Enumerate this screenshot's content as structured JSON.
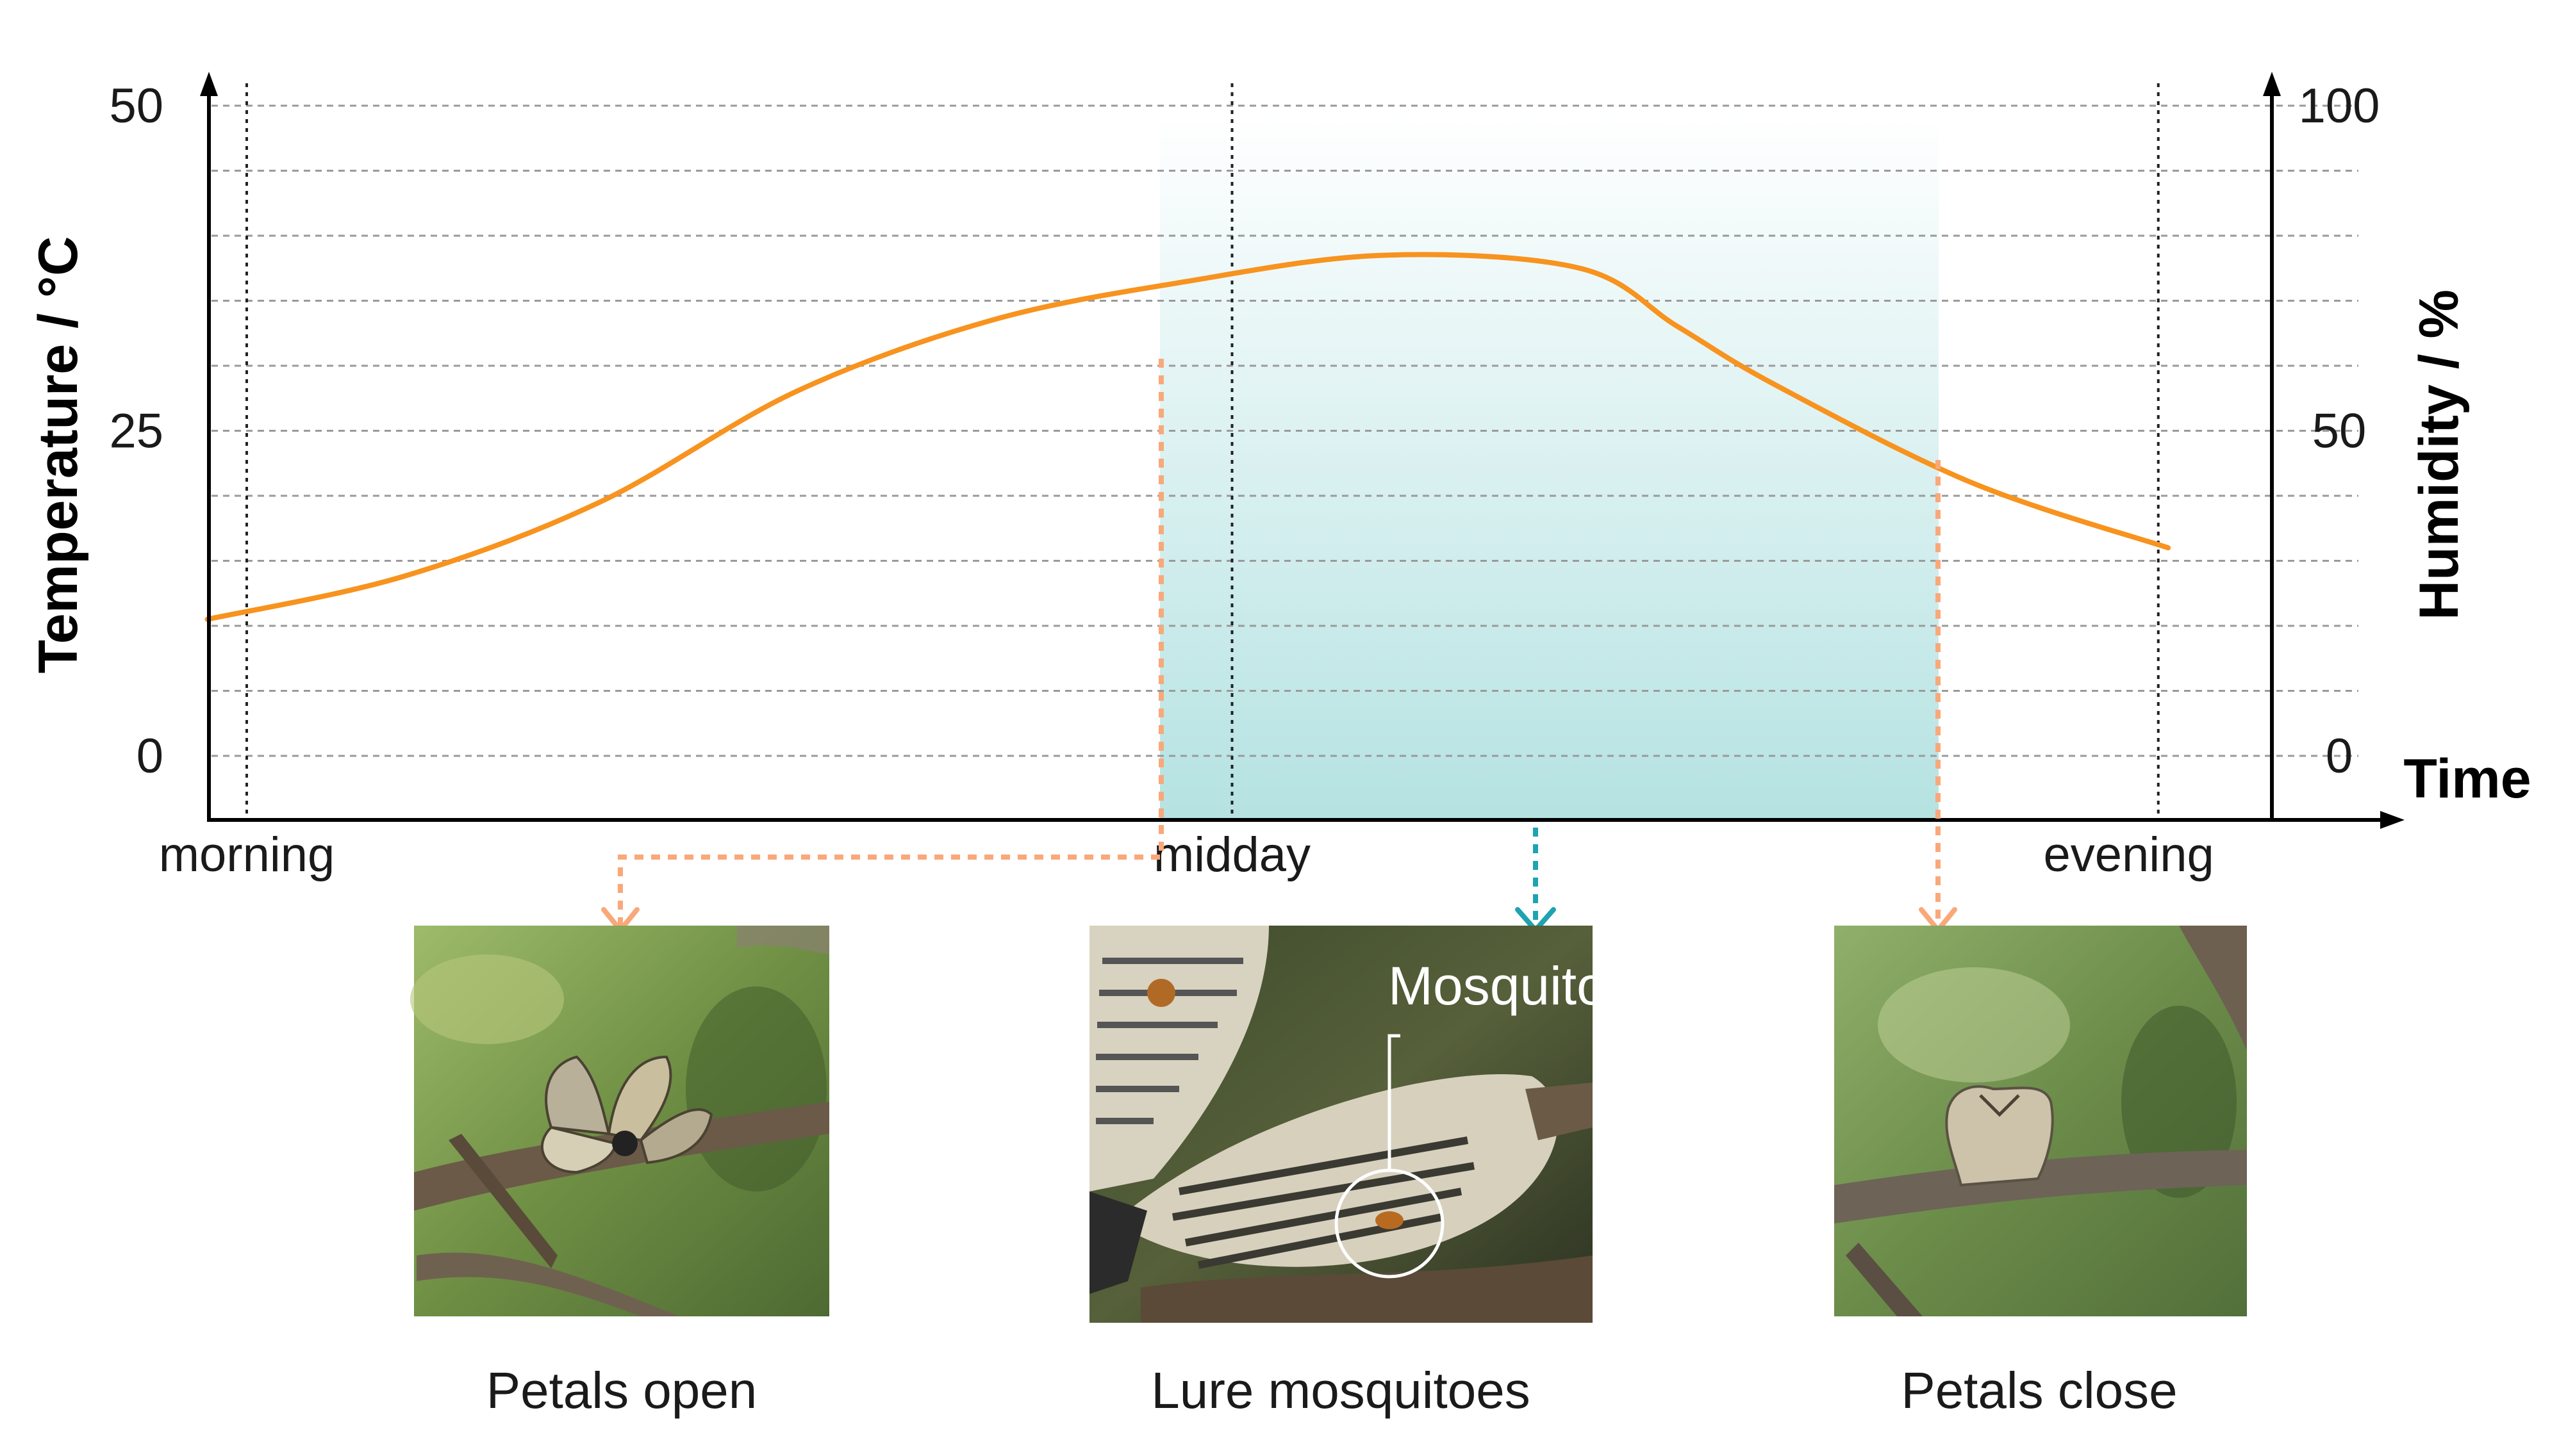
{
  "chart_data": {
    "type": "line",
    "title": "",
    "xlabel": "Time",
    "ylabel": "Temperature / °C",
    "ylabel_right": "Humidity / %",
    "ylim": [
      0,
      50
    ],
    "ylim_right": [
      0,
      100
    ],
    "y_ticks": [
      "0",
      "25",
      "50"
    ],
    "y_ticks_right": [
      "0",
      "50",
      "100"
    ],
    "x_ticks": [
      "morning",
      "midday",
      "evening"
    ],
    "grid": true,
    "series": [
      {
        "color": "#f7931e",
        "x": [
          0,
          0.1,
          0.2,
          0.3,
          0.4,
          0.5,
          0.6,
          0.7,
          0.75,
          0.8,
          0.9,
          1.0
        ],
        "values": [
          10.5,
          13.8,
          19.5,
          28,
          33.5,
          36.5,
          38.5,
          37.5,
          33,
          28.5,
          21,
          16
        ]
      }
    ],
    "annotations": {
      "shaded_region_color": "#b5e2e2",
      "panels": [
        {
          "caption": "Petals open",
          "arrow_color": "#f9a87a"
        },
        {
          "caption": "Lure mosquitoes",
          "label": "Mosquito",
          "arrow_color": "#1fa3b0"
        },
        {
          "caption": "Petals close",
          "arrow_color": "#f9a87a"
        }
      ]
    }
  }
}
